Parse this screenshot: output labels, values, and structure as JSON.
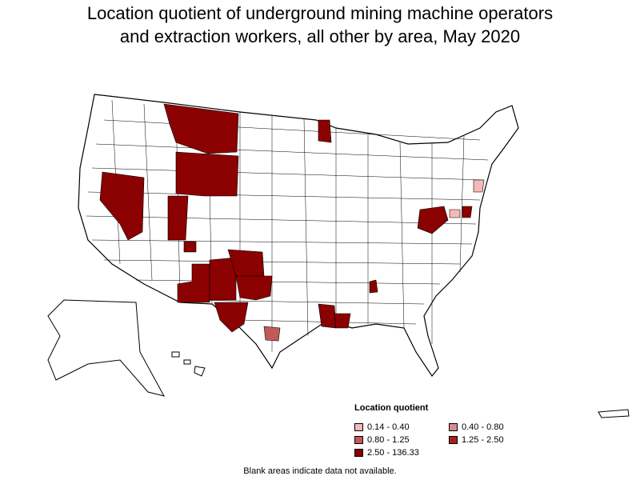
{
  "title_line1": "Location quotient of underground mining machine operators",
  "title_line2": "and extraction workers, all other by area, May 2020",
  "legend": {
    "title": "Location quotient",
    "items": [
      {
        "label": "0.14 - 0.40",
        "color": "#f5b8b8"
      },
      {
        "label": "0.40 - 0.80",
        "color": "#d98a8a"
      },
      {
        "label": "0.80 - 1.25",
        "color": "#c25a5a"
      },
      {
        "label": "1.25 - 2.50",
        "color": "#a82020"
      },
      {
        "label": "2.50 - 136.33",
        "color": "#8b0000"
      }
    ]
  },
  "note": "Blank areas indicate data not available."
}
